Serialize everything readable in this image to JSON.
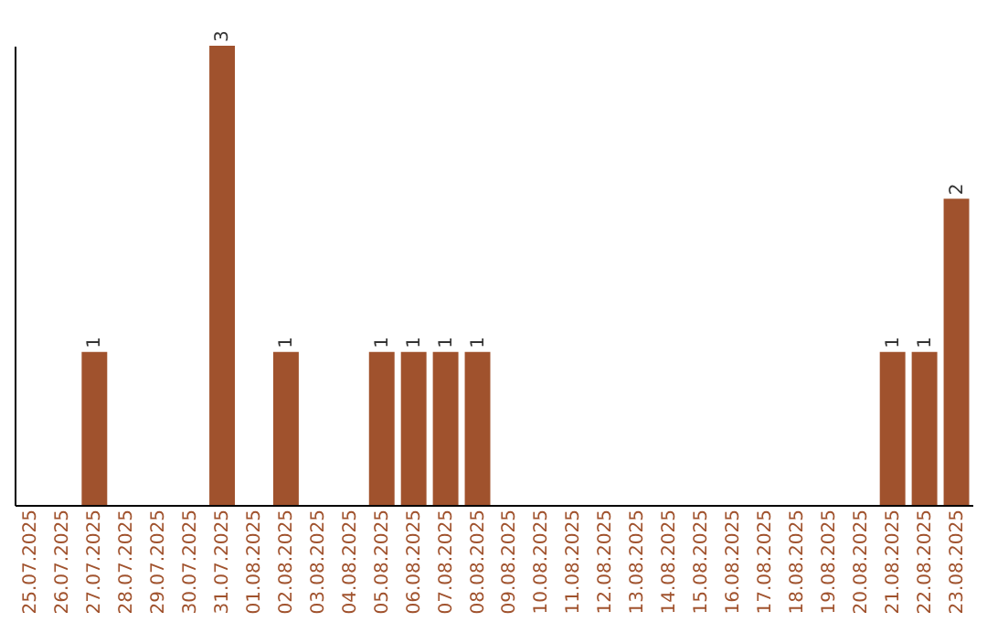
{
  "chart_data": {
    "type": "bar",
    "categories": [
      "25.07.2025",
      "26.07.2025",
      "27.07.2025",
      "28.07.2025",
      "29.07.2025",
      "30.07.2025",
      "31.07.2025",
      "01.08.2025",
      "02.08.2025",
      "03.08.2025",
      "04.08.2025",
      "05.08.2025",
      "06.08.2025",
      "07.08.2025",
      "08.08.2025",
      "09.08.2025",
      "10.08.2025",
      "11.08.2025",
      "12.08.2025",
      "13.08.2025",
      "14.08.2025",
      "15.08.2025",
      "16.08.2025",
      "17.08.2025",
      "18.08.2025",
      "19.08.2025",
      "20.08.2025",
      "21.08.2025",
      "22.08.2025",
      "23.08.2025"
    ],
    "values": [
      0,
      0,
      1,
      0,
      0,
      0,
      3,
      0,
      1,
      0,
      0,
      1,
      1,
      1,
      1,
      0,
      0,
      0,
      0,
      0,
      0,
      0,
      0,
      0,
      0,
      0,
      0,
      1,
      1,
      2
    ],
    "value_labels": [
      null,
      null,
      "1",
      null,
      null,
      null,
      "3",
      null,
      "1",
      null,
      null,
      "1",
      "1",
      "1",
      "1",
      null,
      null,
      null,
      null,
      null,
      null,
      null,
      null,
      null,
      null,
      null,
      null,
      "1",
      "1",
      "2"
    ],
    "color": "#a0522d",
    "grid": false
  }
}
